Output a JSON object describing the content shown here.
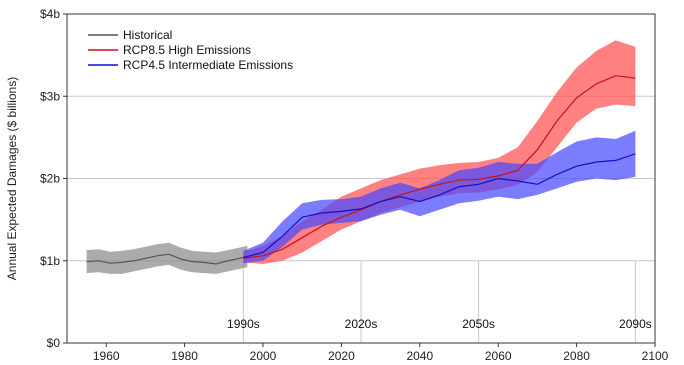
{
  "chart_data": {
    "type": "area",
    "title": "",
    "xlabel": "",
    "ylabel": "Annual Expected Damages ($ billions)",
    "xlim": [
      1950,
      2100
    ],
    "ylim": [
      0,
      4
    ],
    "x_ticks": [
      1960,
      1980,
      2000,
      2020,
      2040,
      2060,
      2080,
      2100
    ],
    "y_ticks": [
      {
        "value": 0,
        "label": "$0"
      },
      {
        "value": 1,
        "label": "$1b"
      },
      {
        "value": 2,
        "label": "$2b"
      },
      {
        "value": 3,
        "label": "$3b"
      },
      {
        "value": 4,
        "label": "$4b"
      }
    ],
    "grid": "horizontal",
    "legend_position": "top-left",
    "legend": [
      "Historical",
      "RCP8.5 High Emissions",
      "RCP4.5 Intermediate Emissions"
    ],
    "decade_markers": [
      {
        "x": 1995,
        "label": "1990s"
      },
      {
        "x": 2025,
        "label": "2020s"
      },
      {
        "x": 2055,
        "label": "2050s"
      },
      {
        "x": 2095,
        "label": "2090s"
      }
    ],
    "series": [
      {
        "name": "Historical",
        "color": "#555555",
        "band_color": "#8a8a8a",
        "x": [
          1955,
          1958,
          1961,
          1964,
          1967,
          1970,
          1973,
          1976,
          1979,
          1982,
          1985,
          1988,
          1991,
          1994,
          1996
        ],
        "mid": [
          0.99,
          1.0,
          0.97,
          0.98,
          1.0,
          1.03,
          1.06,
          1.08,
          1.02,
          0.99,
          0.98,
          0.96,
          1.0,
          1.03,
          1.05
        ],
        "lower": [
          0.85,
          0.86,
          0.84,
          0.84,
          0.87,
          0.9,
          0.93,
          0.95,
          0.89,
          0.86,
          0.85,
          0.84,
          0.87,
          0.9,
          0.92
        ],
        "upper": [
          1.13,
          1.14,
          1.11,
          1.12,
          1.14,
          1.17,
          1.2,
          1.22,
          1.16,
          1.12,
          1.11,
          1.1,
          1.13,
          1.16,
          1.18
        ]
      },
      {
        "name": "RCP8.5 High Emissions",
        "color": "#cc1111",
        "band_color": "#ff5050",
        "x": [
          1995,
          2000,
          2005,
          2010,
          2015,
          2020,
          2025,
          2030,
          2035,
          2040,
          2045,
          2050,
          2055,
          2060,
          2065,
          2070,
          2075,
          2080,
          2085,
          2090,
          2095
        ],
        "mid": [
          1.03,
          1.06,
          1.14,
          1.28,
          1.42,
          1.53,
          1.62,
          1.72,
          1.8,
          1.87,
          1.93,
          1.98,
          1.99,
          2.03,
          2.1,
          2.35,
          2.7,
          2.98,
          3.15,
          3.25,
          3.22
        ],
        "lower": [
          0.98,
          0.96,
          1.0,
          1.1,
          1.24,
          1.38,
          1.48,
          1.58,
          1.65,
          1.72,
          1.78,
          1.82,
          1.83,
          1.87,
          1.92,
          2.08,
          2.38,
          2.68,
          2.85,
          2.9,
          2.88
        ],
        "upper": [
          1.1,
          1.18,
          1.3,
          1.48,
          1.62,
          1.78,
          1.88,
          1.98,
          2.05,
          2.12,
          2.16,
          2.19,
          2.2,
          2.25,
          2.38,
          2.7,
          3.05,
          3.35,
          3.55,
          3.68,
          3.6
        ]
      },
      {
        "name": "RCP4.5 Intermediate Emissions",
        "color": "#1010cc",
        "band_color": "#4a4aff",
        "x": [
          1995,
          2000,
          2005,
          2010,
          2015,
          2020,
          2025,
          2030,
          2035,
          2040,
          2045,
          2050,
          2055,
          2060,
          2065,
          2070,
          2075,
          2080,
          2085,
          2090,
          2095
        ],
        "mid": [
          1.04,
          1.1,
          1.3,
          1.53,
          1.58,
          1.6,
          1.63,
          1.72,
          1.78,
          1.72,
          1.8,
          1.9,
          1.93,
          2.0,
          1.97,
          1.93,
          2.05,
          2.15,
          2.2,
          2.22,
          2.3
        ],
        "lower": [
          0.97,
          1.0,
          1.17,
          1.38,
          1.44,
          1.46,
          1.48,
          1.56,
          1.62,
          1.54,
          1.62,
          1.7,
          1.73,
          1.78,
          1.75,
          1.8,
          1.88,
          1.96,
          2.0,
          1.98,
          2.02
        ],
        "upper": [
          1.12,
          1.22,
          1.48,
          1.7,
          1.74,
          1.75,
          1.78,
          1.88,
          1.95,
          1.88,
          1.98,
          2.1,
          2.13,
          2.2,
          2.18,
          2.18,
          2.32,
          2.45,
          2.5,
          2.48,
          2.58
        ]
      }
    ]
  }
}
